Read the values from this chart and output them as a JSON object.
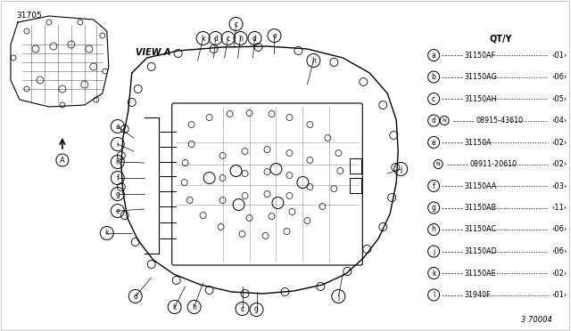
{
  "background_color": "#ffffff",
  "part_number": "31705",
  "diagram_id": "3 70004",
  "qty_title": "QT/Y",
  "view_label": "VIEW A",
  "arrow_label": "A",
  "legend_items": [
    {
      "label": "a",
      "part": "31150AF",
      "qty": "01",
      "note": ""
    },
    {
      "label": "b",
      "part": "31150AG",
      "qty": "06",
      "note": ""
    },
    {
      "label": "c",
      "part": "31150AH",
      "qty": "05",
      "note": ""
    },
    {
      "label": "d",
      "part": "08915-43610",
      "qty": "04",
      "note": "N"
    },
    {
      "label": "e",
      "part": "31150A",
      "qty": "02",
      "note": ""
    },
    {
      "label": "",
      "part": "08911-20610",
      "qty": "02",
      "note": "N"
    },
    {
      "label": "f",
      "part": "31150AA",
      "qty": "03",
      "note": ""
    },
    {
      "label": "g",
      "part": "31150AB",
      "qty": "11",
      "note": ""
    },
    {
      "label": "h",
      "part": "31150AC",
      "qty": "06",
      "note": ""
    },
    {
      "label": "j",
      "part": "31150AD",
      "qty": "06",
      "note": ""
    },
    {
      "label": "k",
      "part": "31150AE",
      "qty": "02",
      "note": ""
    },
    {
      "label": "l",
      "part": "31940F",
      "qty": "01",
      "note": ""
    }
  ]
}
